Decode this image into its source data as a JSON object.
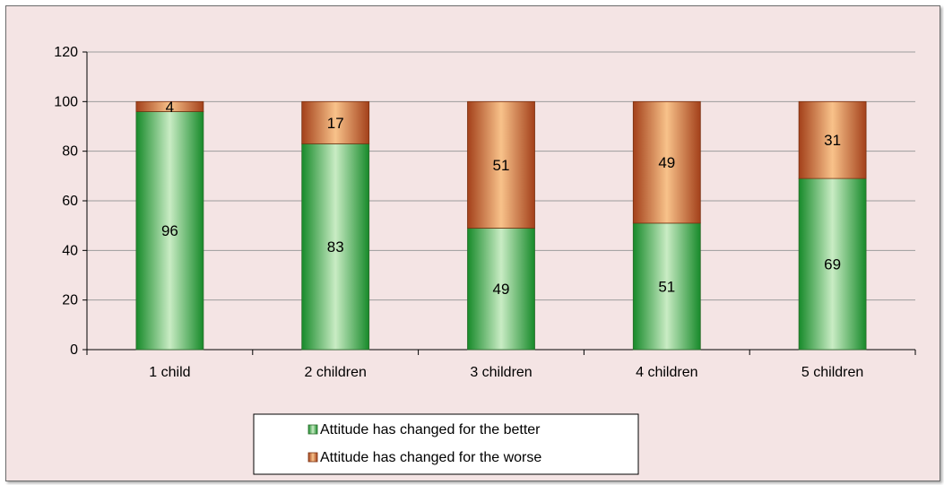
{
  "chart_data": {
    "type": "bar",
    "stacked": true,
    "categories": [
      "1 child",
      "2 children",
      "3 children",
      "4 children",
      "5 children"
    ],
    "series": [
      {
        "name": "Attitude has changed for the better",
        "values": [
          96,
          83,
          49,
          51,
          69
        ],
        "color": "#2e9e3c"
      },
      {
        "name": "Attitude has changed for the worse",
        "values": [
          4,
          17,
          51,
          49,
          31
        ],
        "color": "#c8672a"
      }
    ],
    "ylim": [
      0,
      120
    ],
    "yticks": [
      0,
      20,
      40,
      60,
      80,
      100,
      120
    ],
    "grid": true,
    "legend": "bottom",
    "title": "",
    "xlabel": "",
    "ylabel": ""
  }
}
